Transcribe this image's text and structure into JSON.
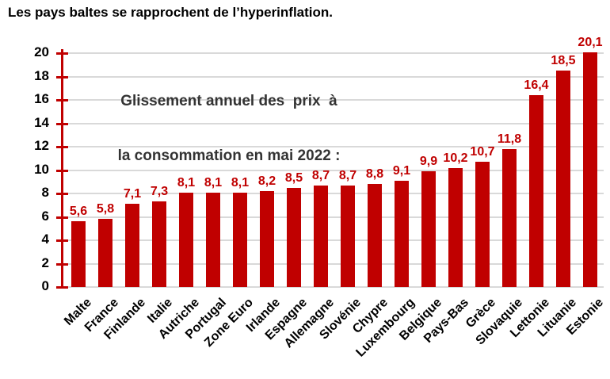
{
  "page_title": "Les pays baltes se rapprochent de l’hyperinflation.",
  "annotation": {
    "line1": "Glissement annuel des  prix  à",
    "line2": "la consommation en mai 2022 :"
  },
  "chart_data": {
    "type": "bar",
    "title": "Glissement annuel des prix à la consommation en mai 2022",
    "categories": [
      "Malte",
      "France",
      "Finlande",
      "Italie",
      "Autriche",
      "Portugal",
      "Zone Euro",
      "Irlande",
      "Espagne",
      "Allemagne",
      "Slovénie",
      "Chypre",
      "Luxembourg",
      "Belgique",
      "Pays-Bas",
      "Grèce",
      "Slovaquie",
      "Lettonie",
      "Lituanie",
      "Estonie"
    ],
    "values": [
      5.6,
      5.8,
      7.1,
      7.3,
      8.1,
      8.1,
      8.1,
      8.2,
      8.5,
      8.7,
      8.7,
      8.8,
      9.1,
      9.9,
      10.2,
      10.7,
      11.8,
      16.4,
      18.5,
      20.1
    ],
    "value_labels": [
      "5,6",
      "5,8",
      "7,1",
      "7,3",
      "8,1",
      "8,1",
      "8,1",
      "8,2",
      "8,5",
      "8,7",
      "8,7",
      "8,8",
      "9,1",
      "9,9",
      "10,2",
      "10,7",
      "11,8",
      "16,4",
      "18,5",
      "20,1"
    ],
    "xlabel": "",
    "ylabel": "",
    "ylim": [
      0,
      20
    ],
    "y_ticks": [
      0,
      2,
      4,
      6,
      8,
      10,
      12,
      14,
      16,
      18,
      20
    ],
    "grid": true,
    "legend": "none",
    "colors": {
      "bar": "#C00000",
      "axis": "#C00000",
      "value_label": "#C00000",
      "gridline": "#D9D9D9",
      "category_label": "#000000",
      "tick_label": "#000000",
      "annotation_text": "#333333",
      "title_text": "#000000",
      "background": "#FFFFFF"
    }
  }
}
